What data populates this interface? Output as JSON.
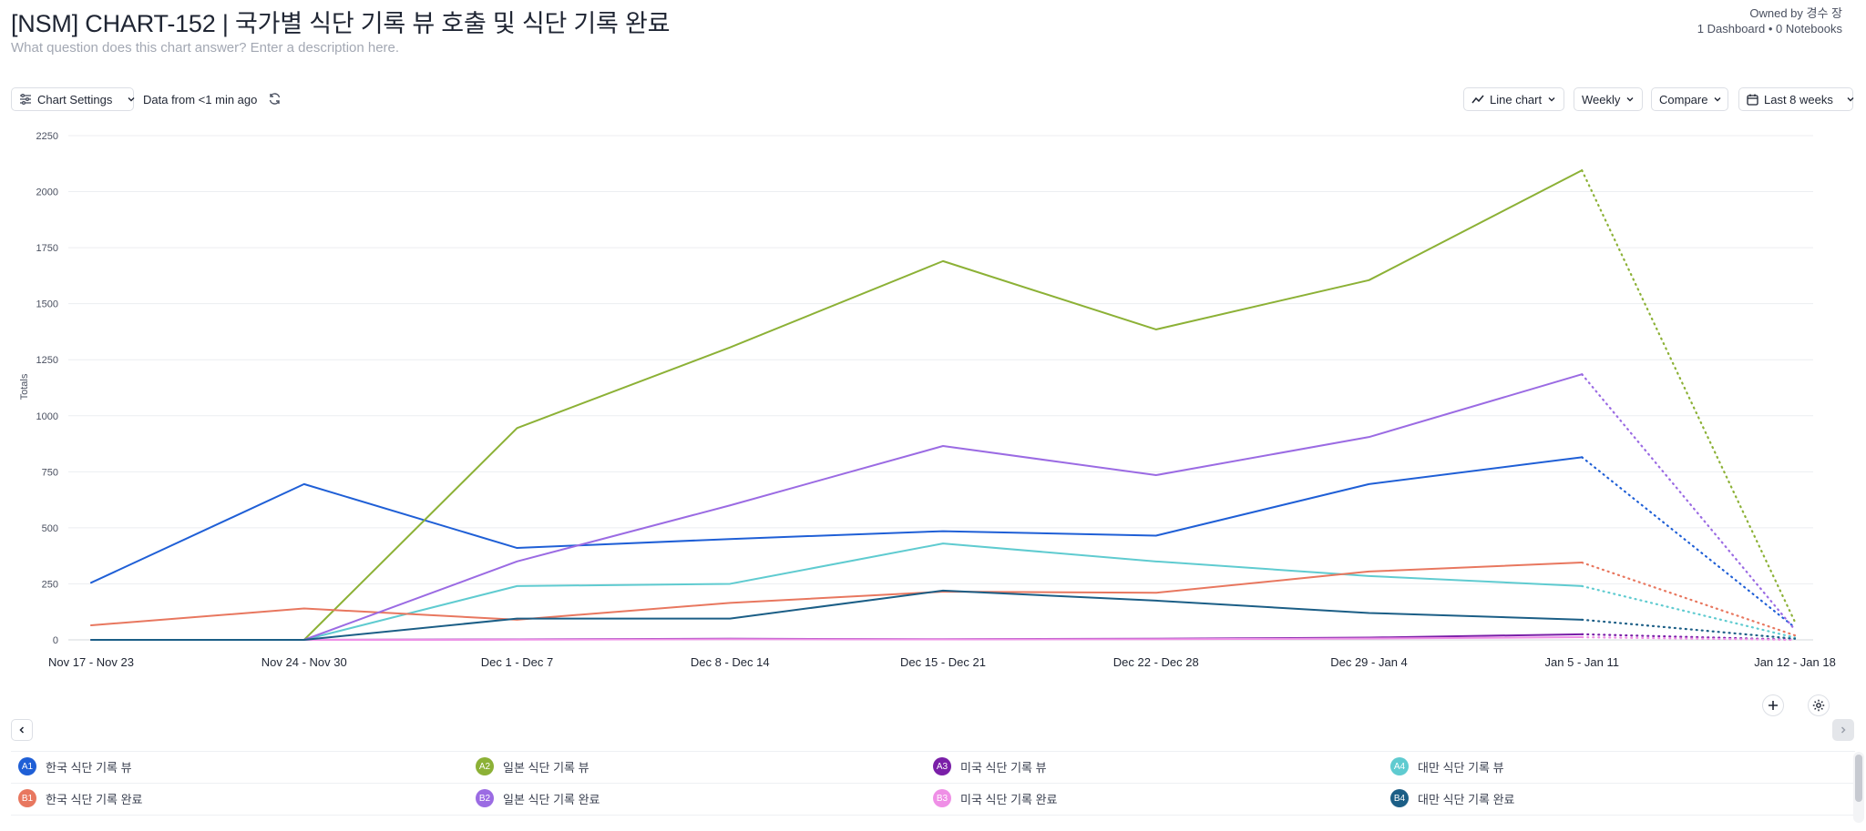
{
  "header": {
    "title": "[NSM] CHART-152 | 국가별 식단 기록 뷰 호출 및 식단 기록 완료",
    "description_placeholder": "What question does this chart answer? Enter a description here.",
    "owner": "Owned by 경수 장",
    "meta": "1 Dashboard • 0 Notebooks"
  },
  "toolbar": {
    "chart_settings_label": "Chart Settings",
    "data_freshness": "Data from <1 min ago",
    "chart_type_label": "Line chart",
    "interval_label": "Weekly",
    "compare_label": "Compare",
    "date_range_label": "Last 8 weeks"
  },
  "colors": {
    "A1": "#1f5fd6",
    "A2": "#8cb136",
    "A3": "#7a1fa8",
    "A4": "#5fcbd0",
    "B1": "#e8775f",
    "B2": "#9b6be3",
    "B3": "#ef8fe6",
    "B4": "#1b5e86"
  },
  "chart_data": {
    "type": "line",
    "ylabel": "Totals",
    "xlabel": "",
    "ylim": [
      0,
      2250
    ],
    "yticks": [
      0,
      250,
      500,
      750,
      1000,
      1250,
      1500,
      1750,
      2000,
      2250
    ],
    "grid": true,
    "incomplete_last_period": true,
    "categories": [
      "Nov 17 - Nov 23",
      "Nov 24 - Nov 30",
      "Dec 1 - Dec 7",
      "Dec 8 - Dec 14",
      "Dec 15 - Dec 21",
      "Dec 22 - Dec 28",
      "Dec 29 - Jan 4",
      "Jan 5 - Jan 11",
      "Jan 12 - Jan 18"
    ],
    "series": [
      {
        "id": "A1",
        "name": "한국 식단 기록 뷰",
        "values": [
          255,
          695,
          410,
          450,
          485,
          465,
          695,
          815,
          55
        ]
      },
      {
        "id": "A2",
        "name": "일본 식단 기록 뷰",
        "values": [
          0,
          0,
          945,
          1305,
          1690,
          1385,
          1605,
          2095,
          80
        ]
      },
      {
        "id": "A3",
        "name": "미국 식단 기록 뷰",
        "values": [
          0,
          0,
          2,
          5,
          3,
          5,
          10,
          25,
          1
        ]
      },
      {
        "id": "A4",
        "name": "대만 식단 기록 뷰",
        "values": [
          0,
          0,
          240,
          250,
          430,
          350,
          285,
          240,
          10
        ]
      },
      {
        "id": "B1",
        "name": "한국 식단 기록 완료",
        "values": [
          65,
          140,
          90,
          165,
          215,
          210,
          305,
          345,
          20
        ]
      },
      {
        "id": "B2",
        "name": "일본 식단 기록 완료",
        "values": [
          0,
          0,
          350,
          600,
          865,
          735,
          905,
          1185,
          45
        ]
      },
      {
        "id": "B3",
        "name": "미국 식단 기록 완료",
        "values": [
          0,
          0,
          1,
          3,
          2,
          3,
          6,
          12,
          0
        ]
      },
      {
        "id": "B4",
        "name": "대만 식단 기록 완료",
        "values": [
          0,
          0,
          95,
          95,
          220,
          175,
          120,
          90,
          5
        ]
      }
    ]
  },
  "legend_badges": [
    "A1",
    "A2",
    "A3",
    "A4",
    "B1",
    "B2",
    "B3",
    "B4"
  ]
}
